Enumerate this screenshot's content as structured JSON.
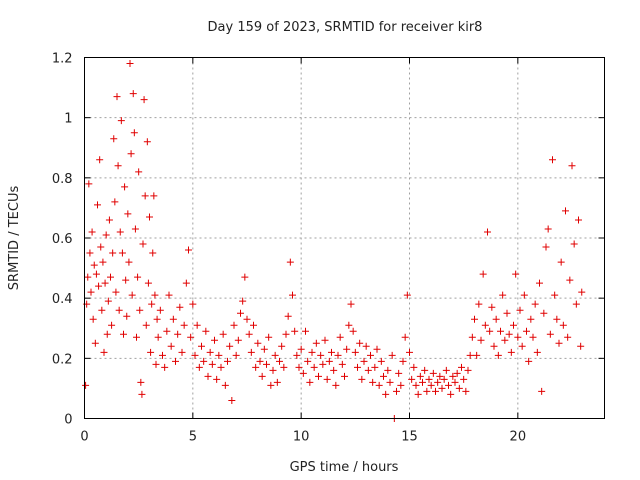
{
  "chart_data": {
    "type": "scatter",
    "title": "Day 159 of 2023, SRMTID for receiver kir8",
    "xlabel": "GPS time / hours",
    "ylabel": "SRMTID / TECUs",
    "xlim": [
      0,
      24
    ],
    "ylim": [
      0,
      1.2
    ],
    "xticks": [
      0,
      5,
      10,
      15,
      20
    ],
    "yticks": [
      0,
      0.2,
      0.4,
      0.6,
      0.8,
      1,
      1.2
    ],
    "xtick_labels": [
      "0",
      "5",
      "10",
      "15",
      "20"
    ],
    "ytick_labels": [
      "0",
      "0.2",
      "0.4",
      "0.6",
      "0.8",
      "1",
      "1.2"
    ],
    "grid": true,
    "marker": "+",
    "color": "#e00000",
    "series": [
      {
        "name": "SRMTID",
        "points": [
          [
            0.05,
            0.11
          ],
          [
            0.1,
            0.38
          ],
          [
            0.15,
            0.47
          ],
          [
            0.2,
            0.78
          ],
          [
            0.25,
            0.55
          ],
          [
            0.3,
            0.42
          ],
          [
            0.35,
            0.62
          ],
          [
            0.4,
            0.33
          ],
          [
            0.45,
            0.51
          ],
          [
            0.5,
            0.25
          ],
          [
            0.55,
            0.48
          ],
          [
            0.6,
            0.71
          ],
          [
            0.65,
            0.44
          ],
          [
            0.7,
            0.86
          ],
          [
            0.75,
            0.57
          ],
          [
            0.8,
            0.36
          ],
          [
            0.85,
            0.52
          ],
          [
            0.9,
            0.22
          ],
          [
            0.95,
            0.45
          ],
          [
            1.0,
            0.61
          ],
          [
            1.05,
            0.28
          ],
          [
            1.1,
            0.39
          ],
          [
            1.15,
            0.66
          ],
          [
            1.2,
            0.47
          ],
          [
            1.25,
            0.31
          ],
          [
            1.3,
            0.55
          ],
          [
            1.35,
            0.93
          ],
          [
            1.4,
            0.72
          ],
          [
            1.45,
            0.42
          ],
          [
            1.5,
            1.07
          ],
          [
            1.55,
            0.84
          ],
          [
            1.6,
            0.36
          ],
          [
            1.65,
            0.62
          ],
          [
            1.7,
            0.99
          ],
          [
            1.75,
            0.55
          ],
          [
            1.8,
            0.28
          ],
          [
            1.85,
            0.77
          ],
          [
            1.9,
            0.46
          ],
          [
            1.95,
            0.34
          ],
          [
            2.0,
            0.68
          ],
          [
            2.05,
            0.52
          ],
          [
            2.1,
            1.18
          ],
          [
            2.15,
            0.88
          ],
          [
            2.2,
            0.41
          ],
          [
            2.25,
            1.08
          ],
          [
            2.3,
            0.95
          ],
          [
            2.35,
            0.63
          ],
          [
            2.4,
            0.27
          ],
          [
            2.45,
            0.47
          ],
          [
            2.5,
            0.82
          ],
          [
            2.55,
            0.36
          ],
          [
            2.6,
            0.12
          ],
          [
            2.65,
            0.08
          ],
          [
            2.7,
            0.58
          ],
          [
            2.75,
            1.06
          ],
          [
            2.8,
            0.74
          ],
          [
            2.85,
            0.31
          ],
          [
            2.9,
            0.92
          ],
          [
            2.95,
            0.45
          ],
          [
            3.0,
            0.67
          ],
          [
            3.05,
            0.22
          ],
          [
            3.1,
            0.38
          ],
          [
            3.15,
            0.55
          ],
          [
            3.2,
            0.74
          ],
          [
            3.25,
            0.41
          ],
          [
            3.3,
            0.18
          ],
          [
            3.35,
            0.33
          ],
          [
            3.4,
            0.27
          ],
          [
            3.5,
            0.36
          ],
          [
            3.6,
            0.21
          ],
          [
            3.7,
            0.17
          ],
          [
            3.8,
            0.29
          ],
          [
            3.9,
            0.41
          ],
          [
            4.0,
            0.24
          ],
          [
            4.1,
            0.33
          ],
          [
            4.2,
            0.19
          ],
          [
            4.3,
            0.28
          ],
          [
            4.4,
            0.37
          ],
          [
            4.5,
            0.22
          ],
          [
            4.6,
            0.31
          ],
          [
            4.7,
            0.45
          ],
          [
            4.8,
            0.56
          ],
          [
            4.9,
            0.27
          ],
          [
            5.0,
            0.38
          ],
          [
            5.1,
            0.21
          ],
          [
            5.2,
            0.31
          ],
          [
            5.3,
            0.17
          ],
          [
            5.4,
            0.24
          ],
          [
            5.5,
            0.19
          ],
          [
            5.6,
            0.29
          ],
          [
            5.7,
            0.14
          ],
          [
            5.8,
            0.22
          ],
          [
            5.9,
            0.18
          ],
          [
            6.0,
            0.26
          ],
          [
            6.1,
            0.13
          ],
          [
            6.2,
            0.21
          ],
          [
            6.3,
            0.17
          ],
          [
            6.4,
            0.28
          ],
          [
            6.5,
            0.11
          ],
          [
            6.6,
            0.19
          ],
          [
            6.7,
            0.24
          ],
          [
            6.8,
            0.06
          ],
          [
            6.9,
            0.31
          ],
          [
            7.0,
            0.21
          ],
          [
            7.1,
            0.26
          ],
          [
            7.2,
            0.35
          ],
          [
            7.3,
            0.39
          ],
          [
            7.4,
            0.47
          ],
          [
            7.5,
            0.33
          ],
          [
            7.6,
            0.28
          ],
          [
            7.7,
            0.22
          ],
          [
            7.8,
            0.31
          ],
          [
            7.9,
            0.17
          ],
          [
            8.0,
            0.25
          ],
          [
            8.1,
            0.19
          ],
          [
            8.2,
            0.14
          ],
          [
            8.3,
            0.23
          ],
          [
            8.4,
            0.18
          ],
          [
            8.5,
            0.27
          ],
          [
            8.6,
            0.11
          ],
          [
            8.7,
            0.16
          ],
          [
            8.8,
            0.21
          ],
          [
            8.9,
            0.12
          ],
          [
            9.0,
            0.19
          ],
          [
            9.1,
            0.24
          ],
          [
            9.2,
            0.17
          ],
          [
            9.3,
            0.28
          ],
          [
            9.4,
            0.34
          ],
          [
            9.5,
            0.52
          ],
          [
            9.6,
            0.41
          ],
          [
            9.7,
            0.29
          ],
          [
            9.8,
            0.21
          ],
          [
            9.9,
            0.17
          ],
          [
            10.0,
            0.23
          ],
          [
            10.1,
            0.15
          ],
          [
            10.2,
            0.29
          ],
          [
            10.3,
            0.19
          ],
          [
            10.4,
            0.12
          ],
          [
            10.5,
            0.22
          ],
          [
            10.6,
            0.17
          ],
          [
            10.7,
            0.25
          ],
          [
            10.8,
            0.14
          ],
          [
            10.9,
            0.21
          ],
          [
            11.0,
            0.18
          ],
          [
            11.1,
            0.26
          ],
          [
            11.2,
            0.13
          ],
          [
            11.3,
            0.19
          ],
          [
            11.4,
            0.22
          ],
          [
            11.5,
            0.16
          ],
          [
            11.6,
            0.11
          ],
          [
            11.7,
            0.21
          ],
          [
            11.8,
            0.27
          ],
          [
            11.9,
            0.18
          ],
          [
            12.0,
            0.14
          ],
          [
            12.1,
            0.23
          ],
          [
            12.2,
            0.31
          ],
          [
            12.3,
            0.38
          ],
          [
            12.4,
            0.29
          ],
          [
            12.5,
            0.22
          ],
          [
            12.6,
            0.17
          ],
          [
            12.7,
            0.25
          ],
          [
            12.8,
            0.13
          ],
          [
            12.9,
            0.19
          ],
          [
            13.0,
            0.24
          ],
          [
            13.1,
            0.16
          ],
          [
            13.2,
            0.21
          ],
          [
            13.3,
            0.12
          ],
          [
            13.4,
            0.17
          ],
          [
            13.5,
            0.23
          ],
          [
            13.6,
            0.11
          ],
          [
            13.7,
            0.19
          ],
          [
            13.8,
            0.14
          ],
          [
            13.9,
            0.08
          ],
          [
            14.0,
            0.16
          ],
          [
            14.1,
            0.12
          ],
          [
            14.2,
            0.21
          ],
          [
            14.3,
            0.0
          ],
          [
            14.4,
            0.09
          ],
          [
            14.5,
            0.15
          ],
          [
            14.6,
            0.11
          ],
          [
            14.7,
            0.19
          ],
          [
            14.8,
            0.27
          ],
          [
            14.9,
            0.41
          ],
          [
            15.0,
            0.22
          ],
          [
            15.1,
            0.13
          ],
          [
            15.2,
            0.17
          ],
          [
            15.3,
            0.11
          ],
          [
            15.4,
            0.08
          ],
          [
            15.5,
            0.14
          ],
          [
            15.6,
            0.12
          ],
          [
            15.7,
            0.16
          ],
          [
            15.8,
            0.09
          ],
          [
            15.9,
            0.13
          ],
          [
            16.0,
            0.11
          ],
          [
            16.1,
            0.15
          ],
          [
            16.2,
            0.09
          ],
          [
            16.3,
            0.12
          ],
          [
            16.4,
            0.14
          ],
          [
            16.5,
            0.1
          ],
          [
            16.6,
            0.13
          ],
          [
            16.7,
            0.16
          ],
          [
            16.8,
            0.11
          ],
          [
            16.9,
            0.08
          ],
          [
            17.0,
            0.14
          ],
          [
            17.1,
            0.12
          ],
          [
            17.2,
            0.15
          ],
          [
            17.3,
            0.1
          ],
          [
            17.4,
            0.17
          ],
          [
            17.5,
            0.13
          ],
          [
            17.6,
            0.09
          ],
          [
            17.7,
            0.16
          ],
          [
            17.8,
            0.21
          ],
          [
            17.9,
            0.27
          ],
          [
            18.0,
            0.33
          ],
          [
            18.1,
            0.21
          ],
          [
            18.2,
            0.38
          ],
          [
            18.3,
            0.26
          ],
          [
            18.4,
            0.48
          ],
          [
            18.5,
            0.31
          ],
          [
            18.6,
            0.62
          ],
          [
            18.7,
            0.29
          ],
          [
            18.8,
            0.37
          ],
          [
            18.9,
            0.24
          ],
          [
            19.0,
            0.33
          ],
          [
            19.1,
            0.21
          ],
          [
            19.2,
            0.29
          ],
          [
            19.3,
            0.41
          ],
          [
            19.4,
            0.26
          ],
          [
            19.5,
            0.35
          ],
          [
            19.6,
            0.28
          ],
          [
            19.7,
            0.22
          ],
          [
            19.8,
            0.31
          ],
          [
            19.9,
            0.48
          ],
          [
            20.0,
            0.27
          ],
          [
            20.1,
            0.36
          ],
          [
            20.2,
            0.24
          ],
          [
            20.3,
            0.41
          ],
          [
            20.4,
            0.29
          ],
          [
            20.5,
            0.19
          ],
          [
            20.6,
            0.33
          ],
          [
            20.7,
            0.27
          ],
          [
            20.8,
            0.38
          ],
          [
            20.9,
            0.22
          ],
          [
            21.0,
            0.45
          ],
          [
            21.1,
            0.09
          ],
          [
            21.2,
            0.35
          ],
          [
            21.3,
            0.57
          ],
          [
            21.4,
            0.63
          ],
          [
            21.5,
            0.28
          ],
          [
            21.6,
            0.86
          ],
          [
            21.7,
            0.41
          ],
          [
            21.8,
            0.33
          ],
          [
            21.9,
            0.25
          ],
          [
            22.0,
            0.52
          ],
          [
            22.1,
            0.31
          ],
          [
            22.2,
            0.69
          ],
          [
            22.3,
            0.27
          ],
          [
            22.4,
            0.46
          ],
          [
            22.5,
            0.84
          ],
          [
            22.6,
            0.58
          ],
          [
            22.7,
            0.38
          ],
          [
            22.8,
            0.66
          ],
          [
            22.9,
            0.24
          ],
          [
            22.95,
            0.42
          ]
        ]
      }
    ]
  }
}
